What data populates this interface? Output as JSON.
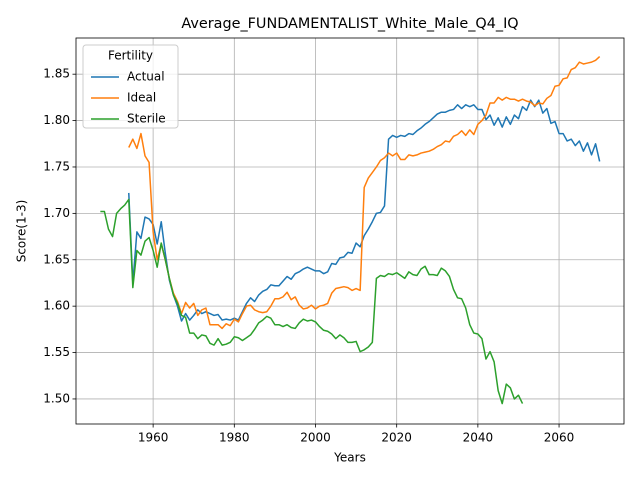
{
  "chart_data": {
    "type": "line",
    "title": "Average_FUNDAMENTALIST_White_Male_Q4_IQ",
    "x_label": "Years",
    "y_label": "Score(1-3)",
    "legend_title": "Fertility",
    "legend": "upper left",
    "grid": true,
    "xlim": [
      1941,
      2076
    ],
    "ylim": [
      1.473,
      1.889
    ],
    "xticks": [
      1960,
      1980,
      2000,
      2020,
      2040,
      2060
    ],
    "yticks": [
      {
        "value": 1.5,
        "label": "1.50"
      },
      1.55,
      {
        "value": 1.6,
        "label": "1.60"
      },
      1.65,
      {
        "value": 1.7,
        "label": "1.70"
      },
      1.75,
      {
        "value": 1.8,
        "label": "1.80"
      },
      1.85
    ],
    "x": [
      1947,
      1948,
      1949,
      1950,
      1951,
      1952,
      1953,
      1954,
      1955,
      1956,
      1957,
      1958,
      1959,
      1960,
      1961,
      1962,
      1963,
      1964,
      1965,
      1966,
      1967,
      1968,
      1969,
      1970,
      1971,
      1972,
      1973,
      1974,
      1975,
      1976,
      1977,
      1978,
      1979,
      1980,
      1981,
      1982,
      1983,
      1984,
      1985,
      1986,
      1987,
      1988,
      1989,
      1990,
      1991,
      1992,
      1993,
      1994,
      1995,
      1996,
      1997,
      1998,
      1999,
      2000,
      2001,
      2002,
      2003,
      2004,
      2005,
      2006,
      2007,
      2008,
      2009,
      2010,
      2011,
      2012,
      2013,
      2014,
      2015,
      2016,
      2017,
      2018,
      2019,
      2020,
      2021,
      2022,
      2023,
      2024,
      2025,
      2026,
      2027,
      2028,
      2029,
      2030,
      2031,
      2032,
      2033,
      2034,
      2035,
      2036,
      2037,
      2038,
      2039,
      2040,
      2041,
      2042,
      2043,
      2044,
      2045,
      2046,
      2047,
      2048,
      2049,
      2050,
      2051,
      2052,
      2053,
      2054,
      2055,
      2056,
      2057,
      2058,
      2059,
      2060,
      2061,
      2062,
      2063,
      2064,
      2065,
      2066,
      2067,
      2068,
      2069,
      2070
    ],
    "series": [
      {
        "name": "Actual",
        "color": "#1f77b4",
        "values": [
          null,
          null,
          null,
          null,
          null,
          null,
          null,
          1.722,
          1.625,
          1.68,
          1.673,
          1.696,
          1.694,
          1.688,
          1.667,
          1.691,
          1.657,
          1.628,
          1.612,
          1.6,
          1.584,
          1.592,
          1.585,
          1.59,
          1.596,
          1.592,
          1.594,
          1.592,
          1.59,
          1.591,
          1.585,
          1.586,
          1.585,
          1.587,
          1.585,
          1.594,
          1.603,
          1.609,
          1.605,
          1.612,
          1.616,
          1.618,
          1.623,
          1.622,
          1.622,
          1.627,
          1.632,
          1.629,
          1.635,
          1.637,
          1.64,
          1.642,
          1.64,
          1.638,
          1.638,
          1.635,
          1.637,
          1.646,
          1.645,
          1.652,
          1.653,
          1.658,
          1.657,
          1.668,
          1.664,
          1.676,
          1.683,
          1.691,
          1.7,
          1.701,
          1.708,
          1.78,
          1.784,
          1.782,
          1.784,
          1.783,
          1.786,
          1.785,
          1.789,
          1.792,
          1.796,
          1.799,
          1.803,
          1.807,
          1.809,
          1.809,
          1.811,
          1.812,
          1.817,
          1.813,
          1.817,
          1.815,
          1.817,
          1.812,
          1.812,
          1.801,
          1.806,
          1.795,
          1.803,
          1.793,
          1.804,
          1.796,
          1.806,
          1.802,
          1.815,
          1.811,
          1.822,
          1.815,
          1.822,
          1.808,
          1.813,
          1.797,
          1.799,
          1.786,
          1.786,
          1.778,
          1.78,
          1.773,
          1.778,
          1.767,
          1.776,
          1.763,
          1.775,
          1.756
        ]
      },
      {
        "name": "Ideal",
        "color": "#ff7f0e",
        "values": [
          null,
          null,
          null,
          null,
          null,
          null,
          null,
          1.771,
          1.78,
          1.77,
          1.786,
          1.762,
          1.755,
          1.68,
          1.65,
          1.667,
          1.65,
          1.63,
          1.614,
          1.605,
          1.592,
          1.604,
          1.598,
          1.603,
          1.59,
          1.596,
          1.598,
          1.58,
          1.58,
          1.58,
          1.576,
          1.581,
          1.579,
          1.586,
          1.583,
          1.592,
          1.6,
          1.601,
          1.596,
          1.594,
          1.593,
          1.594,
          1.6,
          1.608,
          1.608,
          1.61,
          1.615,
          1.607,
          1.61,
          1.601,
          1.597,
          1.598,
          1.601,
          1.597,
          1.6,
          1.601,
          1.603,
          1.614,
          1.619,
          1.62,
          1.621,
          1.62,
          1.617,
          1.619,
          1.617,
          1.728,
          1.738,
          1.744,
          1.75,
          1.757,
          1.76,
          1.765,
          1.762,
          1.765,
          1.758,
          1.758,
          1.763,
          1.762,
          1.763,
          1.765,
          1.766,
          1.767,
          1.769,
          1.772,
          1.774,
          1.778,
          1.777,
          1.783,
          1.785,
          1.789,
          1.784,
          1.79,
          1.785,
          1.796,
          1.8,
          1.806,
          1.819,
          1.819,
          1.825,
          1.822,
          1.825,
          1.823,
          1.823,
          1.821,
          1.823,
          1.821,
          1.82,
          1.816,
          1.819,
          1.818,
          1.824,
          1.827,
          1.837,
          1.838,
          1.845,
          1.846,
          1.855,
          1.857,
          1.863,
          1.861,
          1.862,
          1.863,
          1.865,
          1.869
        ]
      },
      {
        "name": "Sterile",
        "color": "#2ca02c",
        "values": [
          1.702,
          1.702,
          1.683,
          1.675,
          1.7,
          1.705,
          1.709,
          1.715,
          1.62,
          1.66,
          1.655,
          1.67,
          1.674,
          1.66,
          1.642,
          1.668,
          1.65,
          1.63,
          1.612,
          1.603,
          1.59,
          1.588,
          1.571,
          1.571,
          1.565,
          1.569,
          1.568,
          1.56,
          1.558,
          1.565,
          1.558,
          1.559,
          1.561,
          1.567,
          1.566,
          1.563,
          1.566,
          1.569,
          1.575,
          1.582,
          1.585,
          1.589,
          1.587,
          1.58,
          1.58,
          1.578,
          1.58,
          1.577,
          1.576,
          1.582,
          1.586,
          1.584,
          1.585,
          1.583,
          1.578,
          1.574,
          1.573,
          1.57,
          1.565,
          1.569,
          1.566,
          1.561,
          1.561,
          1.562,
          1.551,
          1.553,
          1.556,
          1.561,
          1.63,
          1.633,
          1.632,
          1.635,
          1.634,
          1.636,
          1.633,
          1.63,
          1.637,
          1.634,
          1.633,
          1.64,
          1.643,
          1.634,
          1.634,
          1.633,
          1.641,
          1.638,
          1.632,
          1.618,
          1.609,
          1.608,
          1.598,
          1.58,
          1.571,
          1.57,
          1.565,
          1.543,
          1.551,
          1.54,
          1.509,
          1.495,
          1.516,
          1.512,
          1.5,
          1.504,
          1.495,
          null,
          null,
          null,
          null,
          null,
          null,
          null,
          null,
          null,
          null,
          null,
          null,
          null,
          null,
          null,
          null,
          null,
          null,
          null
        ]
      }
    ]
  }
}
